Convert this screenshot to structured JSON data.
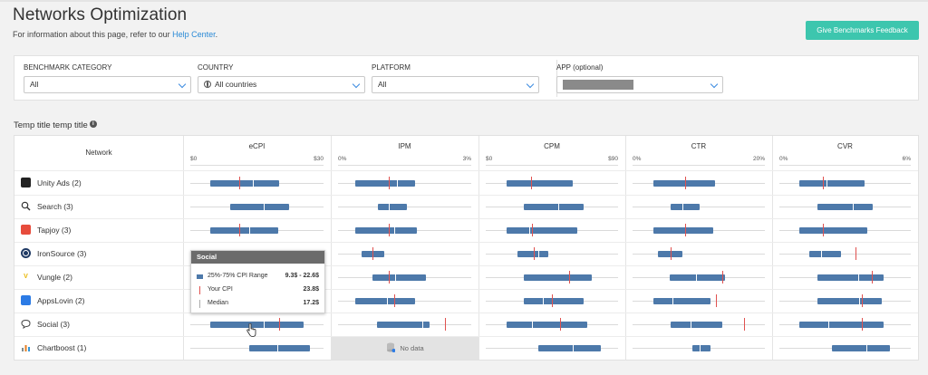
{
  "header": {
    "title": "Networks Optimization",
    "subtitle_prefix": "For information about this page, refer to our ",
    "subtitle_link": "Help Center",
    "subtitle_suffix": ".",
    "feedback_button": "Give Benchmarks Feedback"
  },
  "filters": {
    "benchmark_category": {
      "label": "BENCHMARK CATEGORY",
      "value": "All"
    },
    "country": {
      "label": "COUNTRY",
      "value": "All countries"
    },
    "platform": {
      "label": "PLATFORM",
      "value": "All"
    },
    "app": {
      "label": "APP (optional)",
      "value": ""
    }
  },
  "section_title": "Temp title temp title",
  "table": {
    "network_header": "Network",
    "metrics": [
      {
        "name": "eCPI",
        "min": "$0",
        "max": "$30"
      },
      {
        "name": "IPM",
        "min": "0%",
        "max": "3%"
      },
      {
        "name": "CPM",
        "min": "$0",
        "max": "$90"
      },
      {
        "name": "CTR",
        "min": "0%",
        "max": "20%"
      },
      {
        "name": "CVR",
        "min": "0%",
        "max": "6%"
      }
    ],
    "rows": [
      {
        "label": "Unity Ads (2)",
        "icon": "unity-ads-icon",
        "color": "#222222",
        "bars": [
          [
            0.15,
            0.67,
            0.47,
            0.37
          ],
          [
            0.13,
            0.58,
            0.44,
            0.38
          ],
          [
            0.16,
            0.66,
            0.34,
            0.34
          ],
          [
            0.16,
            0.62,
            0.4,
            0.4
          ],
          [
            0.15,
            0.65,
            0.36,
            0.33
          ]
        ]
      },
      {
        "label": "Search (3)",
        "icon": "search-icon",
        "color": "#333333",
        "bars": [
          [
            0.3,
            0.74,
            0.55,
            null
          ],
          [
            0.3,
            0.52,
            0.38,
            null
          ],
          [
            0.29,
            0.74,
            0.55,
            null
          ],
          [
            0.29,
            0.51,
            0.38,
            null
          ],
          [
            0.29,
            0.71,
            0.56,
            null
          ]
        ]
      },
      {
        "label": "Tapjoy (3)",
        "icon": "tapjoy-icon",
        "color": "#e74c3c",
        "bars": [
          [
            0.15,
            0.66,
            0.44,
            0.37
          ],
          [
            0.13,
            0.59,
            0.42,
            0.38
          ],
          [
            0.16,
            0.69,
            0.33,
            0.35
          ],
          [
            0.16,
            0.61,
            0.4,
            0.4
          ],
          [
            0.15,
            0.67,
            0.33,
            0.33
          ]
        ]
      },
      {
        "label": "IronSource (3)",
        "icon": "ironsource-icon",
        "color": "#1f3a64",
        "bars": [
          [
            null,
            null,
            null,
            null
          ],
          [
            0.18,
            0.35,
            0.26,
            0.26
          ],
          [
            0.24,
            0.47,
            0.4,
            0.36
          ],
          [
            0.19,
            0.38,
            0.29,
            0.29
          ],
          [
            0.23,
            0.47,
            0.32,
            0.58
          ]
        ]
      },
      {
        "label": "Vungle (2)",
        "icon": "vungle-icon",
        "color": "#f1c40f",
        "bars": [
          [
            null,
            null,
            null,
            null
          ],
          [
            0.26,
            0.66,
            0.43,
            0.38
          ],
          [
            0.29,
            0.8,
            0.63,
            0.63
          ],
          [
            0.28,
            0.7,
            0.48,
            0.68
          ],
          [
            0.29,
            0.79,
            0.6,
            0.7
          ]
        ]
      },
      {
        "label": "AppsLovin (2)",
        "icon": "appslovin-icon",
        "color": "#2c7be5",
        "bars": [
          [
            null,
            null,
            null,
            null
          ],
          [
            0.13,
            0.58,
            0.37,
            0.42
          ],
          [
            0.29,
            0.74,
            0.43,
            0.5
          ],
          [
            0.16,
            0.59,
            0.3,
            0.63
          ],
          [
            0.29,
            0.78,
            0.61,
            0.63
          ]
        ]
      },
      {
        "label": "Social (3)",
        "icon": "chat-bubble-icon",
        "color": "#555555",
        "bars": [
          [
            0.15,
            0.85,
            0.55,
            0.67
          ],
          [
            0.29,
            0.69,
            0.63,
            0.8
          ],
          [
            0.16,
            0.77,
            0.35,
            0.56
          ],
          [
            0.29,
            0.68,
            0.44,
            0.84
          ],
          [
            0.15,
            0.79,
            0.37,
            0.63
          ]
        ]
      },
      {
        "label": "Chartboost (1)",
        "icon": "chartboost-icon",
        "color": "#7f8c8d",
        "bars": [
          [
            0.44,
            0.9,
            0.65,
            null
          ],
          [
            "nodata"
          ],
          [
            0.4,
            0.87,
            0.66,
            null
          ],
          [
            0.45,
            0.59,
            0.51,
            null
          ],
          [
            0.4,
            0.84,
            0.66,
            null
          ]
        ]
      }
    ],
    "no_data": "No data"
  },
  "tooltip": {
    "title": "Social",
    "range_label": "25%-75% CPI Range",
    "range_value": "9.3$ - 22.6$",
    "your_label": "Your CPI",
    "your_value": "23.8$",
    "median_label": "Median",
    "median_value": "17.2$"
  },
  "colors": {
    "bar": "#4d79aa",
    "your_marker": "#e0514f",
    "accent": "#3dc6ae",
    "link": "#2b8ad6"
  }
}
